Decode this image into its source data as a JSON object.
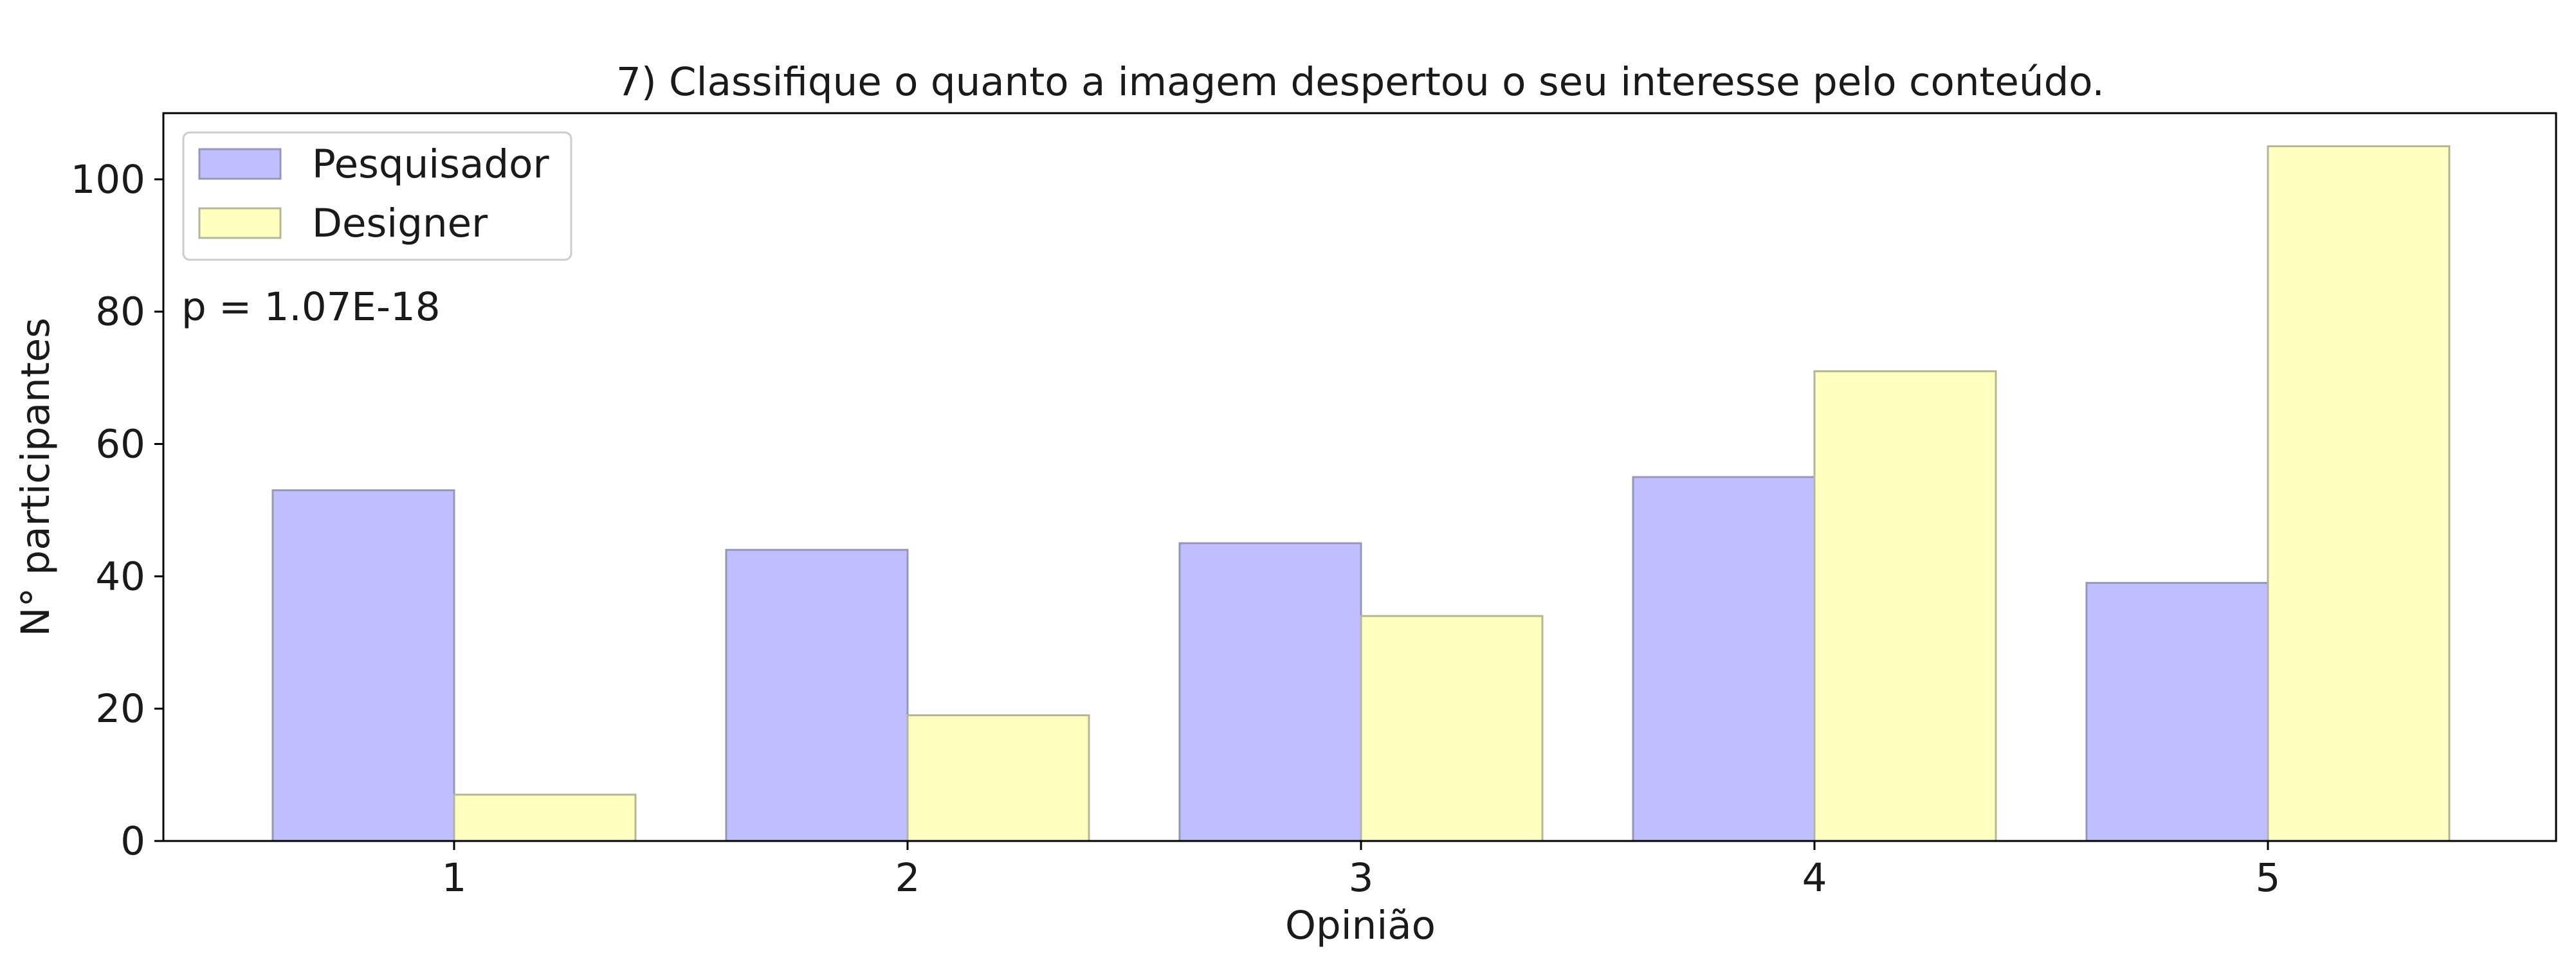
{
  "chart_data": {
    "type": "bar",
    "title": "7) Classifique o quanto a imagem despertou o seu interesse pelo conteúdo.",
    "xlabel": "Opinião",
    "ylabel": "N° participantes",
    "categories": [
      "1",
      "2",
      "3",
      "4",
      "5"
    ],
    "series": [
      {
        "name": "Pesquisador",
        "values": [
          53,
          44,
          45,
          55,
          39
        ],
        "color": "#bfbfff",
        "edge": "#9696b8"
      },
      {
        "name": "Designer",
        "values": [
          7,
          19,
          34,
          71,
          105
        ],
        "color": "#ffffc0",
        "edge": "#b5b59a"
      }
    ],
    "ylim": [
      0,
      110
    ],
    "yticks": [
      0,
      20,
      40,
      60,
      80,
      100
    ],
    "grid": false,
    "legend_position": "top-left",
    "annotation": "p = 1.07E-18"
  }
}
